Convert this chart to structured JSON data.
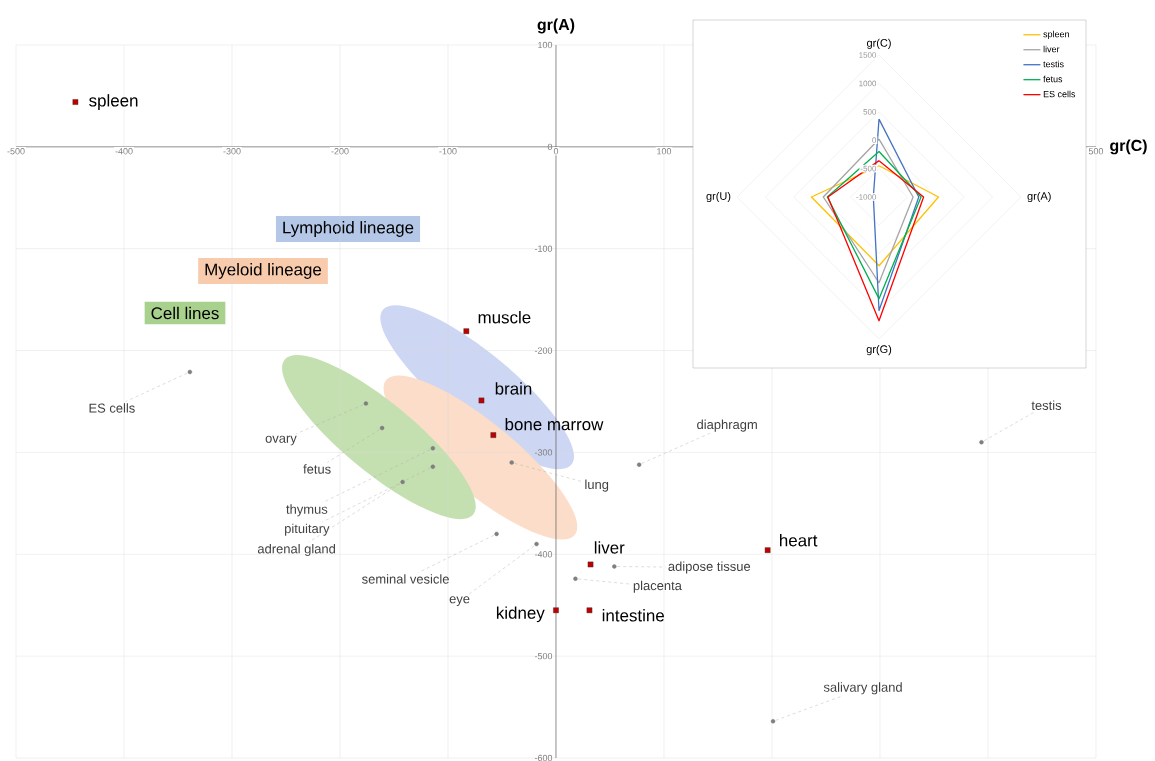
{
  "chart_data": [
    {
      "type": "scatter",
      "xlabel": "gr(C)",
      "ylabel": "gr(A)",
      "xlim": [
        -500,
        500
      ],
      "ylim": [
        -600,
        100
      ],
      "xticks": [
        -500,
        -400,
        -300,
        -200,
        -100,
        0,
        100,
        {
          "value": 200,
          "label": null
        },
        {
          "value": 300,
          "label": null
        },
        {
          "value": 400,
          "label": null
        },
        500
      ],
      "yticks": [
        -600,
        -500,
        -400,
        -300,
        -200,
        -100,
        0,
        100
      ],
      "grid": true,
      "series": [
        {
          "color": "#c00000",
          "marker": "square",
          "x": [
            -445,
            -83,
            -69,
            -58,
            32,
            196,
            0,
            31
          ],
          "values": [
            44,
            -181,
            -249,
            -283,
            -410,
            -396,
            -455,
            -455
          ]
        },
        {
          "color": "#7f7f7f",
          "marker": "circle",
          "x": [
            -339,
            -176,
            -161,
            -114,
            -114,
            -142,
            -41,
            77,
            394,
            -55,
            -18,
            54,
            18,
            201
          ],
          "values": [
            -221,
            -252,
            -276,
            -296,
            -314,
            -329,
            -310,
            -312,
            -290,
            -380,
            -390,
            -412,
            -424,
            -564
          ]
        }
      ],
      "annotations": [
        {
          "text": "spleen",
          "x": -445,
          "y": 44
        },
        {
          "text": "muscle",
          "x": -83,
          "y": -181
        },
        {
          "text": "brain",
          "x": -69,
          "y": -249
        },
        {
          "text": "bone marrow",
          "x": -58,
          "y": -283
        },
        {
          "text": "liver",
          "x": 32,
          "y": -410
        },
        {
          "text": "heart",
          "x": 196,
          "y": -396
        },
        {
          "text": "kidney",
          "x": 0,
          "y": -455
        },
        {
          "text": "intestine",
          "x": 31,
          "y": -455
        },
        {
          "text": "ES cells",
          "x": -339,
          "y": -221
        },
        {
          "text": "ovary",
          "x": -176,
          "y": -252
        },
        {
          "text": "fetus",
          "x": -161,
          "y": -276
        },
        {
          "text": "thymus",
          "x": -114,
          "y": -296
        },
        {
          "text": "pituitary",
          "x": -114,
          "y": -314
        },
        {
          "text": "adrenal gland",
          "x": -142,
          "y": -329
        },
        {
          "text": "lung",
          "x": -41,
          "y": -310
        },
        {
          "text": "diaphragm",
          "x": 77,
          "y": -312
        },
        {
          "text": "testis",
          "x": 394,
          "y": -290
        },
        {
          "text": "seminal vesicle",
          "x": -55,
          "y": -380
        },
        {
          "text": "eye",
          "x": -18,
          "y": -390
        },
        {
          "text": "adipose tissue",
          "x": 54,
          "y": -412
        },
        {
          "text": "placenta",
          "x": 18,
          "y": -424
        },
        {
          "text": "salivary gland",
          "x": 201,
          "y": -564
        },
        "Lymphoid lineage",
        "Myeloid lineage",
        "Cell lines"
      ]
    },
    {
      "type": "radar",
      "categories": [
        "gr(C)",
        "gr(A)",
        "gr(G)",
        "gr(U)"
      ],
      "ylim": [
        -1000,
        1500
      ],
      "yticks": [
        -1000,
        -500,
        0,
        500,
        1000,
        1500
      ],
      "legend": "top right",
      "series": [
        {
          "name": "spleen",
          "color": "#ffc000",
          "values": [
            -450,
            47,
            210,
            190
          ]
        },
        {
          "name": "liver",
          "color": "#a5a5a5",
          "values": [
            20,
            -400,
            510,
            -20
          ]
        },
        {
          "name": "testis",
          "color": "#4472c4",
          "values": [
            370,
            -300,
            1000,
            -900
          ]
        },
        {
          "name": "fetus",
          "color": "#00b050",
          "values": [
            -200,
            -260,
            790,
            -90
          ]
        },
        {
          "name": "ES cells",
          "color": "#ff0000",
          "values": [
            -360,
            -215,
            1180,
            -100
          ]
        }
      ]
    }
  ]
}
